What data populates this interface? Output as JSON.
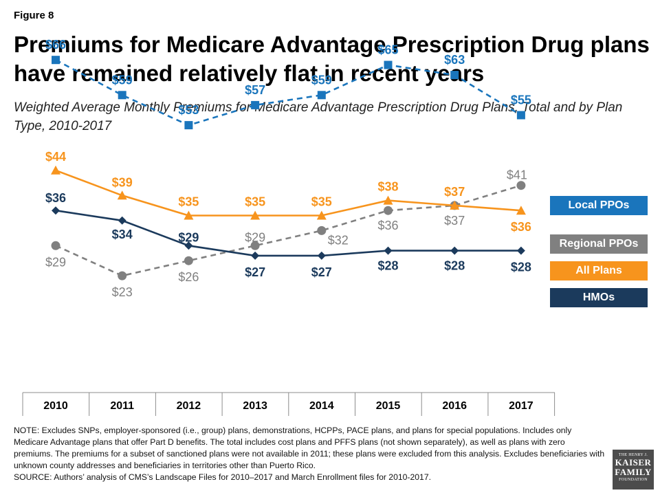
{
  "figure_label": "Figure 8",
  "title": "Premiums for Medicare Advantage Prescription Drug plans have remained relatively flat in recent years",
  "subtitle": "Weighted Average Monthly Premiums for Medicare Advantage Prescription Drug Plans, Total and by Plan Type, 2010-2017",
  "chart_data": {
    "type": "line",
    "title": "Premiums for Medicare Advantage Prescription Drug plans have remained relatively flat in recent years",
    "subtitle": "Weighted Average Monthly Premiums for Medicare Advantage Prescription Drug Plans, Total and by Plan Type, 2010-2017",
    "xlabel": "",
    "ylabel": "",
    "categories": [
      "2010",
      "2011",
      "2012",
      "2013",
      "2014",
      "2015",
      "2016",
      "2017"
    ],
    "ylim": [
      0,
      80
    ],
    "grid": false,
    "legend_position": "right",
    "series": [
      {
        "name": "Local PPOs",
        "values": [
          66,
          59,
          53,
          57,
          59,
          65,
          63,
          55
        ],
        "labels": [
          "$66",
          "$59",
          "$53",
          "$57",
          "$59",
          "$65",
          "$63",
          "$55"
        ],
        "color": "#1a75bc",
        "marker": "square",
        "dash": "dashed"
      },
      {
        "name": "Regional PPOs",
        "values": [
          29,
          23,
          26,
          29,
          32,
          36,
          37,
          41
        ],
        "labels": [
          "$29",
          "$23",
          "$26",
          "$29",
          "$32",
          "$36",
          "$37",
          "$41"
        ],
        "color": "#808080",
        "marker": "circle",
        "dash": "dashed"
      },
      {
        "name": "All Plans",
        "values": [
          44,
          39,
          35,
          35,
          35,
          38,
          37,
          36
        ],
        "labels": [
          "$44",
          "$39",
          "$35",
          "$35",
          "$35",
          "$38",
          "$37",
          "$36"
        ],
        "color": "#f7941d",
        "marker": "triangle",
        "dash": "solid"
      },
      {
        "name": "HMOs",
        "values": [
          36,
          34,
          29,
          27,
          27,
          28,
          28,
          28
        ],
        "labels": [
          "$36",
          "$34",
          "$29",
          "$27",
          "$27",
          "$28",
          "$28",
          "$28"
        ],
        "color": "#1b3a5c",
        "marker": "diamond",
        "dash": "solid"
      }
    ]
  },
  "note": "NOTE: Excludes SNPs, employer-sponsored (i.e., group) plans, demonstrations, HCPPs, PACE plans, and plans for special populations.  Includes only Medicare Advantage plans that offer Part D benefits. The total includes cost plans and PFFS plans (not shown separately), as well as plans with zero premiums. The premiums for a subset of sanctioned plans were not available in 2011; these plans were excluded from this analysis. Excludes beneficiaries with unknown county addresses and beneficiaries in territories other than Puerto Rico.",
  "source": "SOURCE:  Authors’ analysis of CMS’s Landscape Files for 2010–2017  and March Enrollment files for 2010-2017.",
  "logo": {
    "line1": "THE HENRY J.",
    "line2": "KAISER",
    "line3": "FAMILY",
    "line4": "FOUNDATION"
  }
}
